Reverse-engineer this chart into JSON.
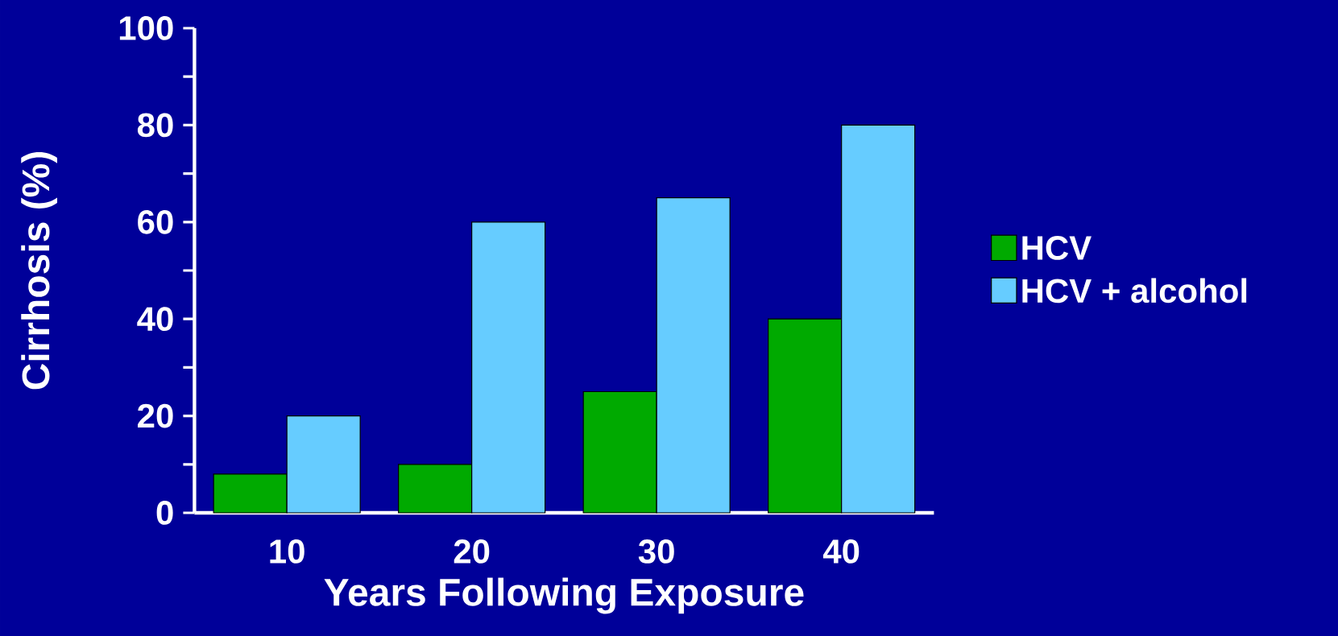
{
  "chart_data": {
    "type": "bar",
    "xlabel": "Years Following Exposure",
    "ylabel": "Cirrhosis (%)",
    "categories": [
      "10",
      "20",
      "30",
      "40"
    ],
    "series": [
      {
        "name": "HCV",
        "color": "#00aa00",
        "values": [
          8,
          10,
          25,
          40
        ]
      },
      {
        "name": "HCV + alcohol",
        "color": "#66ccff",
        "values": [
          20,
          60,
          65,
          80
        ]
      }
    ],
    "ylim": [
      0,
      100
    ],
    "yticks": [
      0,
      {
        "value": 10,
        "label": null
      },
      20,
      {
        "value": 30,
        "label": null
      },
      40,
      {
        "value": 50,
        "label": null
      },
      60,
      {
        "value": 70,
        "label": null
      },
      80,
      {
        "value": 90,
        "label": null
      },
      100
    ],
    "legend": "right"
  }
}
